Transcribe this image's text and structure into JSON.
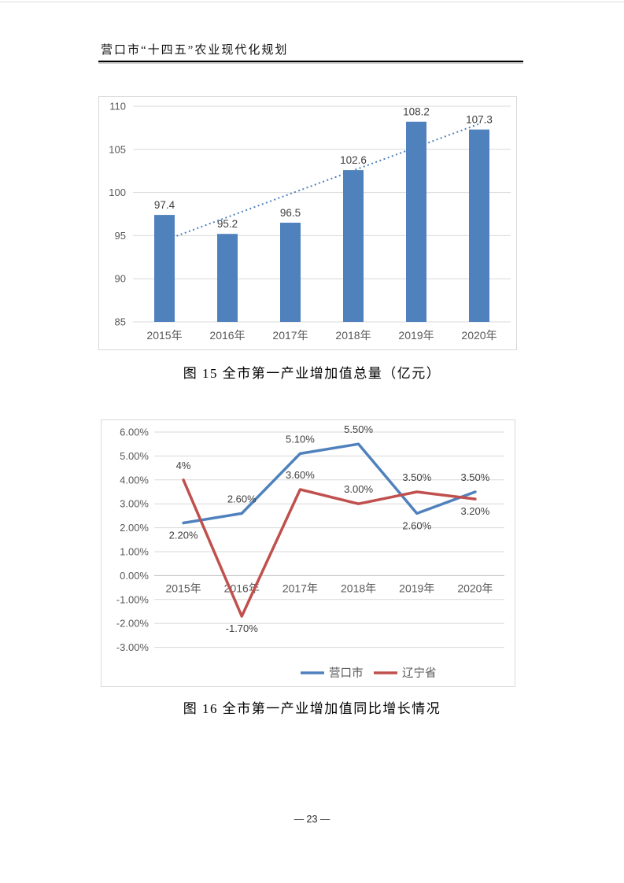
{
  "page": {
    "header_title": "营口市“十四五”农业现代化规划",
    "footer_page_number": "— 23 —"
  },
  "colors": {
    "bar_blue": "#4F81BD",
    "line_blue": "#4F81BD",
    "line_red": "#C0504D",
    "gridline": "#D9D9D9",
    "axis_label": "#595959",
    "data_label": "#404040"
  },
  "chart_data": [
    {
      "type": "bar",
      "title": "图 15  全市第一产业增加值总量（亿元）",
      "categories": [
        "2015年",
        "2016年",
        "2017年",
        "2018年",
        "2019年",
        "2020年"
      ],
      "values": [
        97.4,
        95.2,
        96.5,
        102.6,
        108.2,
        107.3
      ],
      "data_labels": [
        "97.4",
        "95.2",
        "96.5",
        "102.6",
        "108.2",
        "107.3"
      ],
      "xlabel": "",
      "ylabel": "",
      "ylim": [
        85,
        110
      ],
      "yticks": [
        85,
        90,
        95,
        100,
        105,
        110
      ],
      "ytick_labels": [
        "85",
        "90",
        "95",
        "100",
        "105",
        "110"
      ],
      "grid": true,
      "legend": null,
      "bar_color": "#4F81BD",
      "trendline": {
        "type": "linear",
        "style": "dotted",
        "color": "#4F81BD"
      }
    },
    {
      "type": "line",
      "title": "图 16  全市第一产业增加值同比增长情况",
      "categories": [
        "2015年",
        "2016年",
        "2017年",
        "2018年",
        "2019年",
        "2020年"
      ],
      "series": [
        {
          "name": "营口市",
          "color": "#4F81BD",
          "values": [
            2.2,
            2.6,
            5.1,
            5.5,
            2.6,
            3.5
          ],
          "labels": [
            "2.20%",
            "2.60%",
            "5.10%",
            "5.50%",
            "2.60%",
            "3.50%"
          ],
          "label_side": [
            "below",
            "above",
            "above",
            "above",
            "below",
            "above"
          ]
        },
        {
          "name": "辽宁省",
          "color": "#C0504D",
          "values": [
            4.0,
            -1.7,
            3.6,
            3.0,
            3.5,
            3.2
          ],
          "labels": [
            "4%",
            "-1.70%",
            "3.60%",
            "3.00%",
            "3.50%",
            "3.20%"
          ],
          "label_side": [
            "above",
            "below",
            "above",
            "above",
            "above",
            "below"
          ]
        }
      ],
      "xlabel": "",
      "ylabel": "",
      "ylim": [
        -3,
        6
      ],
      "yticks": [
        6,
        5,
        4,
        3,
        2,
        1,
        0,
        -1,
        -2,
        -3
      ],
      "ytick_labels": [
        "6.00%",
        "5.00%",
        "4.00%",
        "3.00%",
        "2.00%",
        "1.00%",
        "0.00%",
        "-1.00%",
        "-2.00%",
        "-3.00%"
      ],
      "grid": true,
      "legend_position": "bottom"
    }
  ]
}
